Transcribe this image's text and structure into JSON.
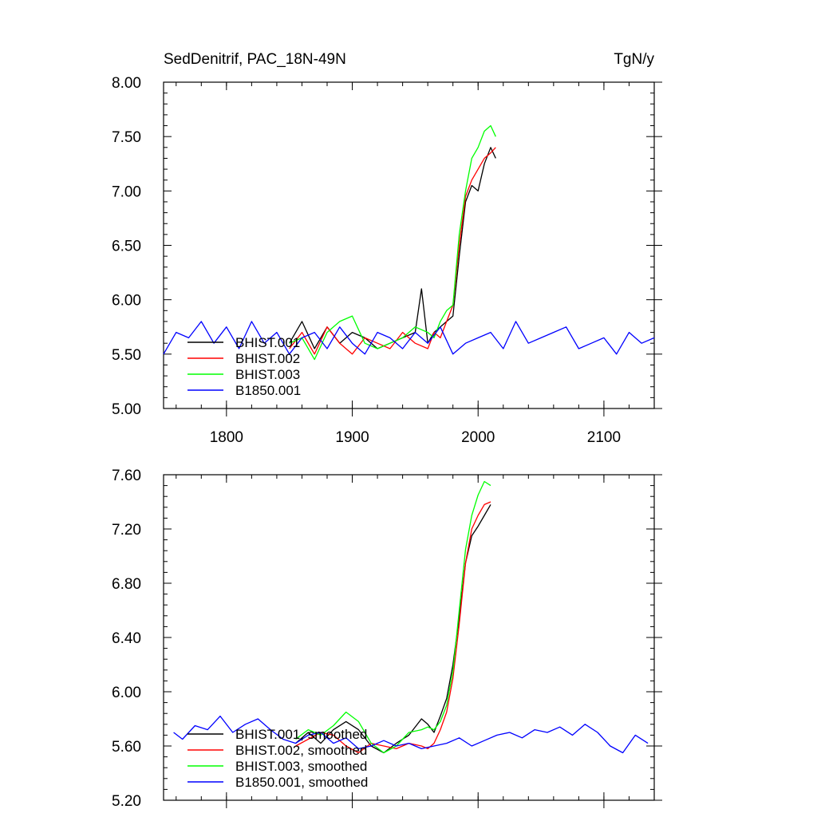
{
  "chart_data": [
    {
      "type": "line",
      "title_left": "SedDenitrif, PAC_18N-49N",
      "title_right": "TgN/y",
      "xlim": [
        1750,
        2140
      ],
      "ylim": [
        5.0,
        8.0
      ],
      "x_ticks": [
        1800,
        1900,
        2000,
        2100
      ],
      "x_tick_labels": [
        "1800",
        "1900",
        "2000",
        "2100"
      ],
      "y_ticks": [
        5.0,
        5.5,
        6.0,
        6.5,
        7.0,
        7.5,
        8.0
      ],
      "y_tick_labels": [
        "5.00",
        "5.50",
        "6.00",
        "6.50",
        "7.00",
        "7.50",
        "8.00"
      ],
      "legend_position": "lower-left",
      "series": [
        {
          "name": "BHIST.001",
          "color": "#000000",
          "x": [
            1850,
            1860,
            1870,
            1880,
            1890,
            1900,
            1910,
            1920,
            1930,
            1940,
            1950,
            1955,
            1960,
            1965,
            1970,
            1975,
            1980,
            1985,
            1990,
            1995,
            2000,
            2005,
            2010,
            2014
          ],
          "y": [
            5.6,
            5.8,
            5.55,
            5.75,
            5.6,
            5.7,
            5.65,
            5.55,
            5.6,
            5.65,
            5.7,
            6.1,
            5.6,
            5.7,
            5.75,
            5.8,
            5.85,
            6.4,
            6.9,
            7.05,
            7.0,
            7.25,
            7.4,
            7.3
          ]
        },
        {
          "name": "BHIST.002",
          "color": "#ff0000",
          "x": [
            1850,
            1860,
            1870,
            1880,
            1890,
            1900,
            1910,
            1920,
            1930,
            1940,
            1950,
            1960,
            1965,
            1970,
            1975,
            1980,
            1985,
            1990,
            1995,
            2000,
            2005,
            2010,
            2014
          ],
          "y": [
            5.55,
            5.7,
            5.5,
            5.75,
            5.6,
            5.5,
            5.65,
            5.6,
            5.55,
            5.7,
            5.6,
            5.55,
            5.7,
            5.65,
            5.8,
            5.95,
            6.5,
            6.95,
            7.1,
            7.2,
            7.3,
            7.35,
            7.4
          ]
        },
        {
          "name": "BHIST.003",
          "color": "#00ff00",
          "x": [
            1850,
            1860,
            1870,
            1880,
            1890,
            1900,
            1910,
            1920,
            1930,
            1940,
            1950,
            1960,
            1965,
            1970,
            1975,
            1980,
            1985,
            1990,
            1995,
            2000,
            2005,
            2010,
            2014
          ],
          "y": [
            5.6,
            5.65,
            5.45,
            5.7,
            5.8,
            5.85,
            5.6,
            5.55,
            5.6,
            5.65,
            5.75,
            5.7,
            5.65,
            5.8,
            5.9,
            5.95,
            6.6,
            7.0,
            7.3,
            7.4,
            7.55,
            7.6,
            7.5
          ]
        },
        {
          "name": "B1850.001",
          "color": "#0000ff",
          "x": [
            1750,
            1760,
            1770,
            1780,
            1790,
            1800,
            1810,
            1820,
            1830,
            1840,
            1850,
            1860,
            1870,
            1880,
            1890,
            1900,
            1910,
            1920,
            1930,
            1940,
            1950,
            1960,
            1970,
            1980,
            1990,
            2000,
            2010,
            2020,
            2030,
            2040,
            2050,
            2060,
            2070,
            2080,
            2090,
            2100,
            2110,
            2120,
            2130,
            2140
          ],
          "y": [
            5.5,
            5.7,
            5.65,
            5.8,
            5.6,
            5.75,
            5.55,
            5.8,
            5.6,
            5.7,
            5.5,
            5.65,
            5.7,
            5.55,
            5.75,
            5.6,
            5.5,
            5.7,
            5.65,
            5.55,
            5.7,
            5.6,
            5.75,
            5.5,
            5.6,
            5.65,
            5.7,
            5.55,
            5.8,
            5.6,
            5.65,
            5.7,
            5.75,
            5.55,
            5.6,
            5.65,
            5.5,
            5.7,
            5.6,
            5.65
          ]
        }
      ]
    },
    {
      "type": "line",
      "xlim": [
        1750,
        2140
      ],
      "ylim": [
        5.2,
        7.6
      ],
      "x_ticks": [
        1800,
        1900,
        2000,
        2100
      ],
      "y_ticks": [
        5.2,
        5.6,
        6.0,
        6.4,
        6.8,
        7.2,
        7.6
      ],
      "y_tick_labels": [
        "5.20",
        "5.60",
        "6.00",
        "6.40",
        "6.80",
        "7.20",
        "7.60"
      ],
      "legend_position": "lower-left",
      "series": [
        {
          "name": "BHIST.001, smoothed",
          "color": "#000000",
          "x": [
            1855,
            1865,
            1875,
            1885,
            1895,
            1905,
            1915,
            1925,
            1935,
            1945,
            1955,
            1960,
            1965,
            1970,
            1975,
            1980,
            1985,
            1990,
            1995,
            2000,
            2005,
            2010
          ],
          "y": [
            5.62,
            5.7,
            5.62,
            5.72,
            5.78,
            5.72,
            5.6,
            5.55,
            5.62,
            5.68,
            5.8,
            5.76,
            5.7,
            5.82,
            5.95,
            6.2,
            6.55,
            6.95,
            7.15,
            7.22,
            7.3,
            7.38
          ]
        },
        {
          "name": "BHIST.002, smoothed",
          "color": "#ff0000",
          "x": [
            1855,
            1865,
            1875,
            1885,
            1895,
            1905,
            1915,
            1925,
            1935,
            1945,
            1955,
            1960,
            1965,
            1970,
            1975,
            1980,
            1985,
            1990,
            1995,
            2000,
            2005,
            2010
          ],
          "y": [
            5.6,
            5.65,
            5.7,
            5.68,
            5.6,
            5.55,
            5.62,
            5.6,
            5.58,
            5.62,
            5.6,
            5.58,
            5.62,
            5.72,
            5.85,
            6.1,
            6.5,
            6.95,
            7.2,
            7.3,
            7.38,
            7.4
          ]
        },
        {
          "name": "BHIST.003, smoothed",
          "color": "#00ff00",
          "x": [
            1855,
            1865,
            1875,
            1885,
            1895,
            1905,
            1915,
            1925,
            1935,
            1945,
            1955,
            1960,
            1965,
            1970,
            1975,
            1980,
            1985,
            1990,
            1995,
            2000,
            2005,
            2010
          ],
          "y": [
            5.65,
            5.72,
            5.68,
            5.75,
            5.85,
            5.78,
            5.62,
            5.55,
            5.6,
            5.7,
            5.72,
            5.74,
            5.72,
            5.78,
            5.9,
            6.15,
            6.6,
            7.05,
            7.3,
            7.45,
            7.55,
            7.52
          ]
        },
        {
          "name": "B1850.001, smoothed",
          "color": "#0000ff",
          "x": [
            1758,
            1765,
            1775,
            1785,
            1795,
            1805,
            1815,
            1825,
            1835,
            1845,
            1855,
            1865,
            1875,
            1885,
            1895,
            1905,
            1915,
            1925,
            1935,
            1945,
            1955,
            1965,
            1975,
            1985,
            1995,
            2005,
            2015,
            2025,
            2035,
            2045,
            2055,
            2065,
            2075,
            2085,
            2095,
            2105,
            2115,
            2125,
            2135
          ],
          "y": [
            5.7,
            5.65,
            5.75,
            5.72,
            5.82,
            5.7,
            5.76,
            5.8,
            5.72,
            5.65,
            5.62,
            5.68,
            5.7,
            5.62,
            5.66,
            5.58,
            5.6,
            5.64,
            5.6,
            5.62,
            5.58,
            5.6,
            5.62,
            5.66,
            5.6,
            5.64,
            5.68,
            5.7,
            5.66,
            5.72,
            5.7,
            5.74,
            5.68,
            5.76,
            5.7,
            5.6,
            5.55,
            5.68,
            5.62
          ]
        }
      ]
    }
  ]
}
